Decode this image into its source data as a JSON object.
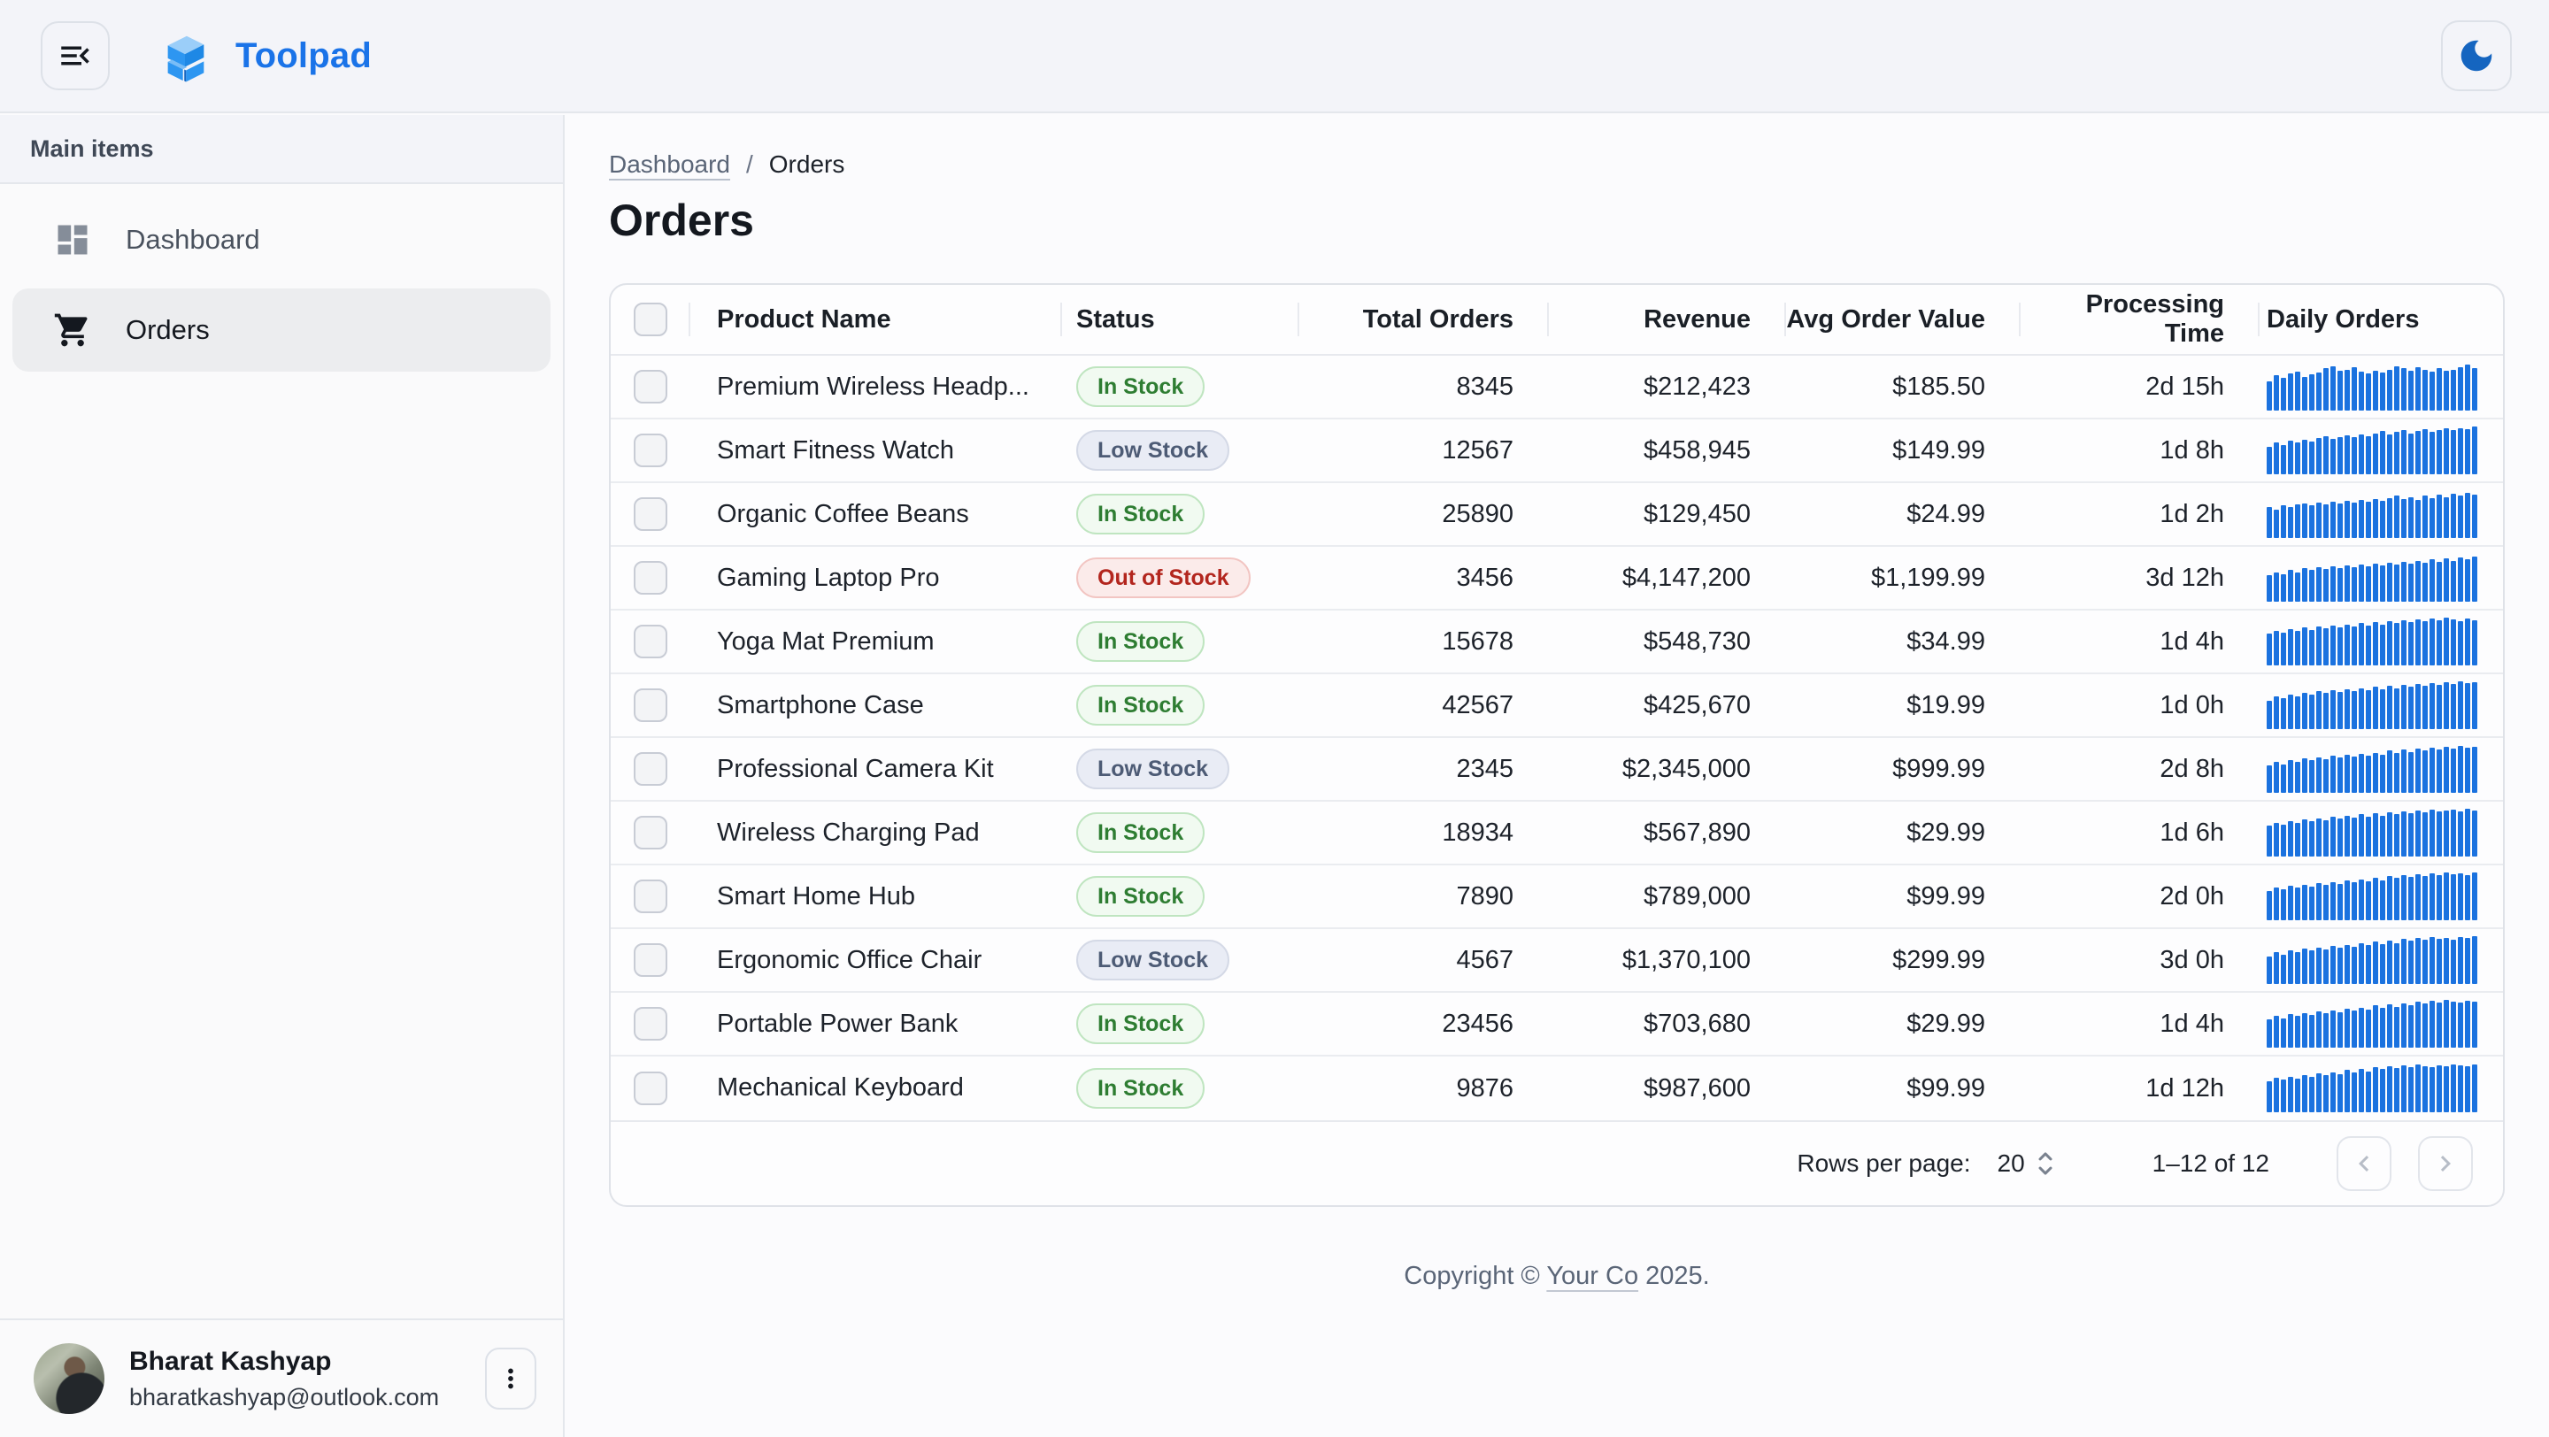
{
  "app": {
    "title": "Toolpad"
  },
  "colors": {
    "accent_blue": "#1A73E8",
    "sparkline_blue": "#1B72DF",
    "moon_blue": "#1565C0",
    "success_text": "#2E7D32",
    "neutral_text": "#4D5B75",
    "error_text": "#B3261E",
    "appbar_bg": "#F3F4F9",
    "selected_item_bg": "#ECEDEF"
  },
  "icons": {
    "menu_toggle": "menu-open-icon",
    "brand": "toolpad-logo",
    "theme_toggle": "dark-mode-moon-icon",
    "dashboard": "dashboard-grid-icon",
    "orders": "shopping-cart-icon",
    "user_menu": "kebab-menu-icon",
    "rows_per_page": "up-down-chevrons-icon",
    "prev_page": "chevron-left-icon",
    "next_page": "chevron-right-icon"
  },
  "sidebar": {
    "section_label": "Main items",
    "items": [
      {
        "label": "Dashboard",
        "selected": false
      },
      {
        "label": "Orders",
        "selected": true
      }
    ],
    "user": {
      "name": "Bharat Kashyap",
      "email": "bharatkashyap@outlook.com"
    }
  },
  "breadcrumb": {
    "link": "Dashboard",
    "separator": "/",
    "current": "Orders"
  },
  "page": {
    "title": "Orders"
  },
  "table": {
    "columns": [
      {
        "label": "Product Name",
        "align": "left"
      },
      {
        "label": "Status",
        "align": "left"
      },
      {
        "label": "Total Orders",
        "align": "right"
      },
      {
        "label": "Revenue",
        "align": "right"
      },
      {
        "label": "Avg Order Value",
        "align": "right"
      },
      {
        "label": "Processing Time",
        "align": "right"
      },
      {
        "label": "Daily Orders",
        "align": "left"
      }
    ],
    "rows": [
      {
        "product": "Premium Wireless Headp...",
        "status": "In Stock",
        "status_variant": "success",
        "total_orders": "8345",
        "revenue": "$212,423",
        "avg_order_value": "$185.50",
        "processing_time": "2d 15h",
        "daily_orders": [
          62,
          74,
          68,
          78,
          82,
          70,
          76,
          80,
          88,
          92,
          84,
          86,
          90,
          82,
          78,
          84,
          80,
          86,
          92,
          88,
          84,
          90,
          86,
          82,
          88,
          84,
          86,
          90,
          96,
          88
        ]
      },
      {
        "product": "Smart Fitness Watch",
        "status": "Low Stock",
        "status_variant": "neutral",
        "total_orders": "12567",
        "revenue": "$458,945",
        "avg_order_value": "$149.99",
        "processing_time": "1d 8h",
        "daily_orders": [
          58,
          66,
          62,
          70,
          66,
          72,
          68,
          76,
          80,
          74,
          78,
          82,
          78,
          84,
          80,
          86,
          90,
          84,
          88,
          92,
          86,
          90,
          94,
          88,
          92,
          96,
          92,
          96,
          94,
          100
        ]
      },
      {
        "product": "Organic Coffee Beans",
        "status": "In Stock",
        "status_variant": "success",
        "total_orders": "25890",
        "revenue": "$129,450",
        "avg_order_value": "$24.99",
        "processing_time": "1d 2h",
        "daily_orders": [
          64,
          60,
          68,
          64,
          70,
          72,
          68,
          74,
          70,
          76,
          72,
          78,
          74,
          80,
          76,
          82,
          78,
          84,
          88,
          82,
          86,
          80,
          88,
          84,
          90,
          86,
          92,
          88,
          94,
          90
        ]
      },
      {
        "product": "Gaming Laptop Pro",
        "status": "Out of Stock",
        "status_variant": "error",
        "total_orders": "3456",
        "revenue": "$4,147,200",
        "avg_order_value": "$1,199.99",
        "processing_time": "3d 12h",
        "daily_orders": [
          56,
          62,
          58,
          66,
          62,
          70,
          66,
          72,
          68,
          74,
          70,
          76,
          72,
          78,
          74,
          80,
          76,
          82,
          78,
          84,
          80,
          86,
          82,
          88,
          84,
          90,
          86,
          92,
          88,
          94
        ]
      },
      {
        "product": "Yoga Mat Premium",
        "status": "In Stock",
        "status_variant": "success",
        "total_orders": "15678",
        "revenue": "$548,730",
        "avg_order_value": "$34.99",
        "processing_time": "1d 4h",
        "daily_orders": [
          66,
          72,
          68,
          76,
          72,
          80,
          74,
          82,
          78,
          84,
          80,
          86,
          82,
          88,
          84,
          90,
          86,
          92,
          88,
          94,
          90,
          96,
          92,
          98,
          94,
          100,
          96,
          92,
          98,
          94
        ]
      },
      {
        "product": "Smartphone Case",
        "status": "In Stock",
        "status_variant": "success",
        "total_orders": "42567",
        "revenue": "$425,670",
        "avg_order_value": "$19.99",
        "processing_time": "1d 0h",
        "daily_orders": [
          60,
          68,
          64,
          72,
          68,
          76,
          72,
          80,
          76,
          82,
          78,
          84,
          80,
          86,
          82,
          88,
          84,
          90,
          86,
          92,
          88,
          94,
          90,
          96,
          92,
          98,
          94,
          100,
          96,
          98
        ]
      },
      {
        "product": "Professional Camera Kit",
        "status": "Low Stock",
        "status_variant": "neutral",
        "total_orders": "2345",
        "revenue": "$2,345,000",
        "avg_order_value": "$999.99",
        "processing_time": "2d 8h",
        "daily_orders": [
          58,
          64,
          60,
          68,
          64,
          72,
          68,
          74,
          70,
          78,
          74,
          80,
          76,
          82,
          78,
          84,
          80,
          88,
          84,
          90,
          86,
          92,
          88,
          94,
          90,
          96,
          92,
          98,
          94,
          96
        ]
      },
      {
        "product": "Wireless Charging Pad",
        "status": "In Stock",
        "status_variant": "success",
        "total_orders": "18934",
        "revenue": "$567,890",
        "avg_order_value": "$29.99",
        "processing_time": "1d 6h",
        "daily_orders": [
          64,
          70,
          66,
          74,
          70,
          78,
          74,
          80,
          76,
          84,
          80,
          86,
          82,
          88,
          84,
          90,
          86,
          92,
          88,
          94,
          90,
          96,
          92,
          98,
          94,
          96,
          98,
          94,
          100,
          96
        ]
      },
      {
        "product": "Smart Home Hub",
        "status": "In Stock",
        "status_variant": "success",
        "total_orders": "7890",
        "revenue": "$789,000",
        "avg_order_value": "$99.99",
        "processing_time": "2d 0h",
        "daily_orders": [
          62,
          68,
          64,
          72,
          68,
          74,
          70,
          78,
          74,
          80,
          76,
          84,
          80,
          86,
          82,
          88,
          84,
          92,
          88,
          94,
          90,
          96,
          92,
          98,
          94,
          100,
          96,
          98,
          94,
          100
        ]
      },
      {
        "product": "Ergonomic Office Chair",
        "status": "Low Stock",
        "status_variant": "neutral",
        "total_orders": "4567",
        "revenue": "$1,370,100",
        "avg_order_value": "$299.99",
        "processing_time": "3d 0h",
        "daily_orders": [
          58,
          66,
          62,
          70,
          66,
          74,
          70,
          76,
          72,
          80,
          76,
          82,
          78,
          86,
          82,
          88,
          84,
          90,
          86,
          94,
          90,
          96,
          92,
          98,
          94,
          96,
          92,
          98,
          96,
          100
        ]
      },
      {
        "product": "Portable Power Bank",
        "status": "In Stock",
        "status_variant": "success",
        "total_orders": "23456",
        "revenue": "$703,680",
        "avg_order_value": "$29.99",
        "processing_time": "1d 4h",
        "daily_orders": [
          60,
          66,
          62,
          70,
          66,
          72,
          68,
          76,
          72,
          78,
          74,
          82,
          78,
          84,
          80,
          88,
          84,
          90,
          86,
          92,
          88,
          96,
          92,
          98,
          94,
          100,
          96,
          94,
          98,
          96
        ]
      },
      {
        "product": "Mechanical Keyboard",
        "status": "In Stock",
        "status_variant": "success",
        "total_orders": "9876",
        "revenue": "$987,600",
        "avg_order_value": "$99.99",
        "processing_time": "1d 12h",
        "daily_orders": [
          64,
          72,
          68,
          74,
          70,
          78,
          74,
          82,
          78,
          84,
          80,
          88,
          84,
          90,
          86,
          94,
          90,
          96,
          92,
          98,
          94,
          100,
          96,
          94,
          98,
          96,
          100,
          98,
          96,
          100
        ]
      }
    ],
    "pagination": {
      "rows_per_page_label": "Rows per page:",
      "rows_per_page": "20",
      "range": "1–12 of 12"
    }
  },
  "footer": {
    "prefix": "Copyright © ",
    "link": "Your Co",
    "suffix": " 2025."
  }
}
